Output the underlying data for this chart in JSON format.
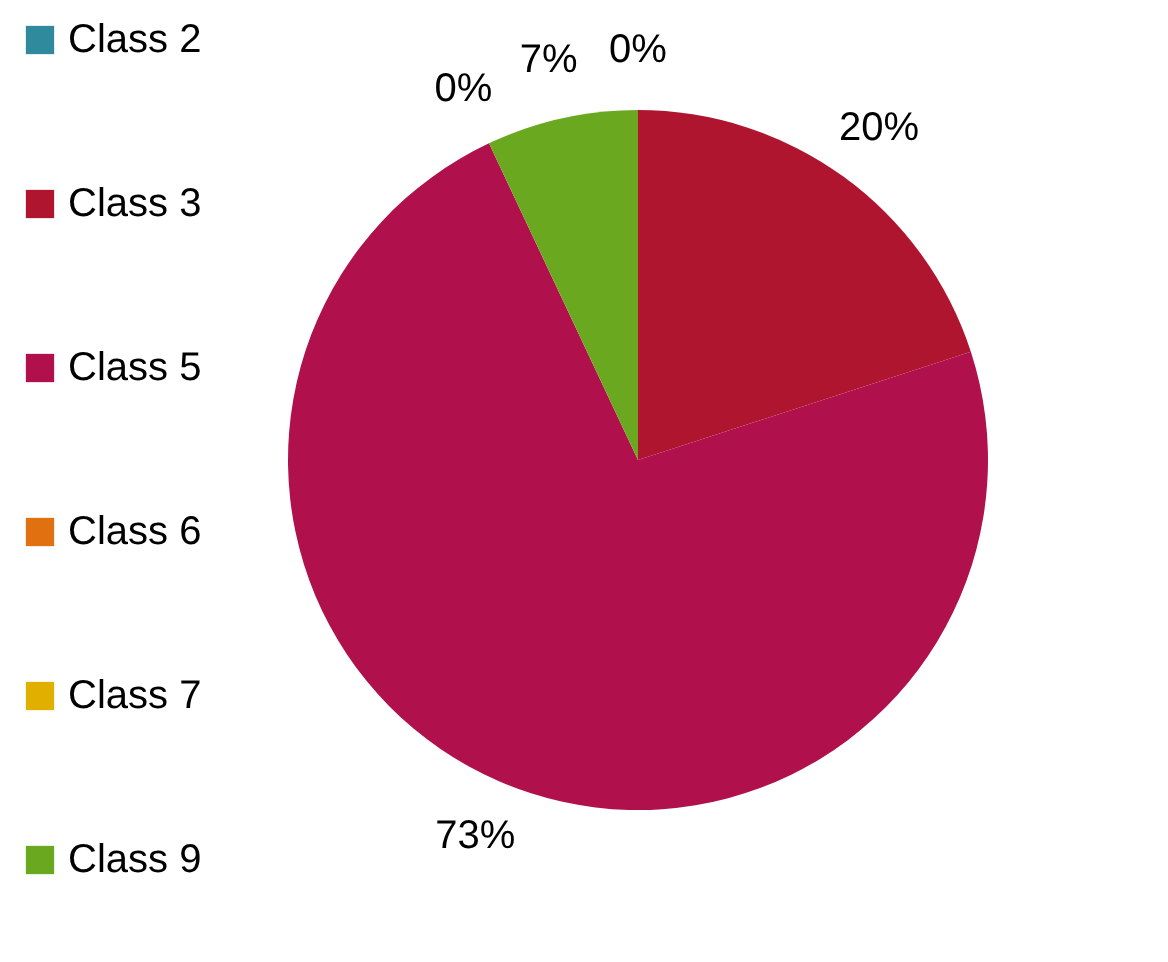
{
  "chart_data": {
    "type": "pie",
    "categories": [
      "Class 2",
      "Class 3",
      "Class 5",
      "Class 6",
      "Class 7",
      "Class 9"
    ],
    "values": [
      0,
      20,
      73,
      0,
      0,
      7
    ],
    "colors": [
      "#2e8a9c",
      "#b01530",
      "#b0104c",
      "#e07010",
      "#e0b000",
      "#6aa820"
    ],
    "value_labels": [
      "0%",
      "20%",
      "73%",
      null,
      "0%",
      "7%"
    ],
    "legend": "left"
  }
}
